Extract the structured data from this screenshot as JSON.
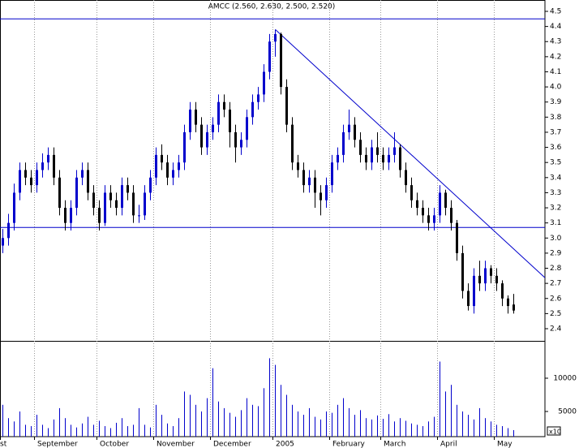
{
  "chart_data": {
    "type": "candlestick",
    "title": "AMCC (2.560, 2.630, 2.500, 2.520)",
    "categories": [
      "st",
      null,
      null,
      null,
      null,
      null,
      "September",
      null,
      null,
      null,
      null,
      null,
      null,
      null,
      null,
      null,
      null,
      "October",
      null,
      null,
      null,
      null,
      null,
      null,
      null,
      null,
      null,
      "November",
      null,
      null,
      null,
      null,
      null,
      null,
      null,
      null,
      null,
      "December",
      null,
      null,
      null,
      null,
      null,
      null,
      null,
      null,
      null,
      null,
      "2005",
      null,
      null,
      null,
      null,
      null,
      null,
      null,
      null,
      null,
      "February",
      null,
      null,
      null,
      null,
      null,
      null,
      null,
      null,
      "March",
      null,
      null,
      null,
      null,
      null,
      null,
      null,
      null,
      null,
      "April",
      null,
      null,
      null,
      null,
      null,
      null,
      null,
      null,
      null,
      "May",
      null,
      null,
      null
    ],
    "open": [
      2.95,
      3.0,
      3.1,
      3.3,
      3.45,
      3.4,
      3.35,
      3.45,
      3.5,
      3.55,
      3.4,
      3.2,
      3.1,
      3.2,
      3.4,
      3.45,
      3.3,
      3.2,
      3.1,
      3.3,
      3.25,
      3.2,
      3.35,
      3.3,
      3.15,
      3.15,
      3.3,
      3.4,
      3.55,
      3.5,
      3.4,
      3.45,
      3.5,
      3.7,
      3.85,
      3.75,
      3.6,
      3.7,
      3.75,
      3.9,
      3.85,
      3.7,
      3.6,
      3.65,
      3.8,
      3.9,
      3.95,
      4.1,
      4.3,
      4.35,
      4.0,
      3.75,
      3.5,
      3.45,
      3.35,
      3.4,
      3.3,
      3.25,
      3.35,
      3.5,
      3.55,
      3.7,
      3.75,
      3.65,
      3.55,
      3.5,
      3.6,
      3.55,
      3.5,
      3.55,
      3.6,
      3.45,
      3.35,
      3.25,
      3.2,
      3.15,
      3.1,
      3.15,
      3.3,
      3.2,
      3.1,
      2.9,
      2.65,
      2.55,
      2.75,
      2.7,
      2.8,
      2.75,
      2.7,
      2.6,
      2.56
    ],
    "high": [
      3.06,
      3.16,
      3.36,
      3.5,
      3.5,
      3.45,
      3.5,
      3.56,
      3.6,
      3.6,
      3.45,
      3.25,
      3.25,
      3.45,
      3.5,
      3.5,
      3.35,
      3.25,
      3.35,
      3.35,
      3.3,
      3.4,
      3.4,
      3.35,
      3.22,
      3.35,
      3.45,
      3.6,
      3.62,
      3.55,
      3.5,
      3.55,
      3.75,
      3.9,
      3.9,
      3.8,
      3.75,
      3.8,
      3.95,
      3.95,
      3.9,
      3.75,
      3.7,
      3.85,
      3.95,
      4.0,
      4.15,
      4.35,
      4.38,
      4.36,
      4.05,
      3.8,
      3.55,
      3.5,
      3.45,
      3.45,
      3.35,
      3.4,
      3.55,
      3.6,
      3.75,
      3.85,
      3.8,
      3.7,
      3.6,
      3.65,
      3.7,
      3.6,
      3.6,
      3.7,
      3.62,
      3.5,
      3.4,
      3.3,
      3.25,
      3.2,
      3.2,
      3.35,
      3.32,
      3.25,
      3.12,
      2.95,
      2.7,
      2.8,
      2.85,
      2.85,
      2.82,
      2.8,
      2.72,
      2.62,
      2.63
    ],
    "low": [
      2.9,
      2.95,
      3.05,
      3.25,
      3.35,
      3.3,
      3.3,
      3.4,
      3.45,
      3.35,
      3.15,
      3.05,
      3.05,
      3.15,
      3.35,
      3.25,
      3.15,
      3.05,
      3.08,
      3.2,
      3.15,
      3.15,
      3.25,
      3.1,
      3.1,
      3.12,
      3.25,
      3.35,
      3.45,
      3.35,
      3.35,
      3.4,
      3.45,
      3.65,
      3.7,
      3.55,
      3.55,
      3.65,
      3.7,
      3.8,
      3.6,
      3.5,
      3.55,
      3.6,
      3.75,
      3.85,
      3.9,
      4.05,
      4.2,
      3.95,
      3.7,
      3.45,
      3.4,
      3.3,
      3.3,
      3.2,
      3.15,
      3.2,
      3.3,
      3.45,
      3.5,
      3.65,
      3.6,
      3.5,
      3.45,
      3.45,
      3.5,
      3.45,
      3.45,
      3.5,
      3.4,
      3.3,
      3.2,
      3.15,
      3.1,
      3.05,
      3.05,
      3.1,
      3.15,
      3.05,
      2.85,
      2.6,
      2.52,
      2.5,
      2.65,
      2.65,
      2.7,
      2.65,
      2.55,
      2.5,
      2.5
    ],
    "close": [
      3.0,
      3.1,
      3.3,
      3.45,
      3.4,
      3.35,
      3.45,
      3.5,
      3.55,
      3.4,
      3.2,
      3.1,
      3.2,
      3.4,
      3.45,
      3.3,
      3.2,
      3.1,
      3.3,
      3.25,
      3.2,
      3.35,
      3.3,
      3.15,
      3.15,
      3.3,
      3.4,
      3.55,
      3.5,
      3.4,
      3.45,
      3.5,
      3.7,
      3.85,
      3.75,
      3.6,
      3.7,
      3.75,
      3.9,
      3.85,
      3.7,
      3.6,
      3.65,
      3.8,
      3.9,
      3.95,
      4.1,
      4.3,
      4.35,
      4.0,
      3.75,
      3.5,
      3.45,
      3.35,
      3.4,
      3.3,
      3.25,
      3.35,
      3.5,
      3.55,
      3.7,
      3.75,
      3.65,
      3.55,
      3.5,
      3.6,
      3.55,
      3.5,
      3.55,
      3.6,
      3.45,
      3.35,
      3.25,
      3.2,
      3.15,
      3.1,
      3.15,
      3.3,
      3.2,
      3.1,
      2.9,
      2.65,
      2.55,
      2.75,
      2.7,
      2.8,
      2.75,
      2.7,
      2.6,
      2.55,
      2.52
    ],
    "up_color": "#0000cc",
    "down_color": "#000000",
    "ylim": [
      2.4,
      4.5
    ],
    "yticks": [
      2.4,
      2.5,
      2.6,
      2.7,
      2.8,
      2.9,
      {
        "value": 3,
        "label": "3.0"
      },
      3.1,
      3.2,
      3.3,
      3.4,
      3.5,
      3.6,
      3.7,
      3.8,
      3.9,
      {
        "value": 4,
        "label": "4.0"
      },
      4.1,
      4.2,
      4.3,
      4.4,
      4.5
    ],
    "hlines": [
      4.45,
      3.07
    ],
    "trendline": {
      "x": [
        48,
        96
      ],
      "y": [
        4.38,
        2.72
      ]
    },
    "line_color": "#0000cc",
    "volume": {
      "color": "#0000cc",
      "ylim": [
        0,
        15000
      ],
      "yticks": [
        5000,
        10000
      ],
      "unit": "x10",
      "values": [
        6000,
        4000,
        3500,
        5000,
        3000,
        2800,
        4500,
        3000,
        2500,
        3800,
        5500,
        4000,
        3000,
        2600,
        3200,
        4200,
        3000,
        3600,
        2800,
        2500,
        3300,
        4000,
        2800,
        3000,
        5500,
        3000,
        2600,
        6000,
        4500,
        3200,
        2800,
        4000,
        8000,
        7500,
        6000,
        5000,
        7000,
        11500,
        6500,
        5500,
        4800,
        4200,
        5200,
        7000,
        6000,
        5800,
        8500,
        13000,
        12000,
        9000,
        7500,
        6000,
        5000,
        4500,
        5500,
        4200,
        3800,
        5000,
        4800,
        6000,
        7000,
        5500,
        4500,
        5200,
        4000,
        3800,
        4400,
        3900,
        4600,
        3500,
        4000,
        3600,
        3200,
        3000,
        2800,
        3500,
        4200,
        12500,
        8000,
        9000,
        6000,
        5000,
        4500,
        3800,
        5500,
        4000,
        3500,
        3000,
        2800,
        2500,
        2200
      ]
    }
  }
}
